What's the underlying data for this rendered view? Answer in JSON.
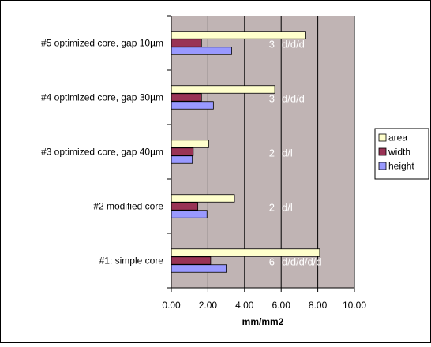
{
  "chart_data": {
    "type": "bar",
    "orientation": "horizontal",
    "xlabel": "mm/mm2",
    "xlim": [
      0,
      10
    ],
    "xticks": [
      "0.00",
      "2.00",
      "4.00",
      "6.00",
      "8.00",
      "10.00"
    ],
    "grid": true,
    "legend_position": "right",
    "plot_background": "#c0b4b4",
    "categories": [
      "#1: simple core",
      "#2 modified core",
      "#3 optimized core, gap 40µm",
      "#4 optimized core, gap 30µm",
      "#5 optimized core, gap 10µm"
    ],
    "series": [
      {
        "name": "area",
        "color": "#ffffcc",
        "values": [
          8.1,
          3.45,
          2.05,
          5.65,
          7.35
        ]
      },
      {
        "name": "width",
        "color": "#993355",
        "values": [
          2.15,
          1.45,
          1.2,
          1.65,
          1.65
        ]
      },
      {
        "name": "height",
        "color": "#9999ff",
        "values": [
          3.0,
          1.95,
          1.15,
          2.3,
          3.3
        ]
      }
    ],
    "annotations": [
      {
        "number": "6",
        "code": "d/d/d/d/d"
      },
      {
        "number": "2",
        "code": "d/l"
      },
      {
        "number": "2",
        "code": "d/l"
      },
      {
        "number": "3",
        "code": "d/d/d"
      },
      {
        "number": "3",
        "code": "d/d/d"
      }
    ]
  }
}
